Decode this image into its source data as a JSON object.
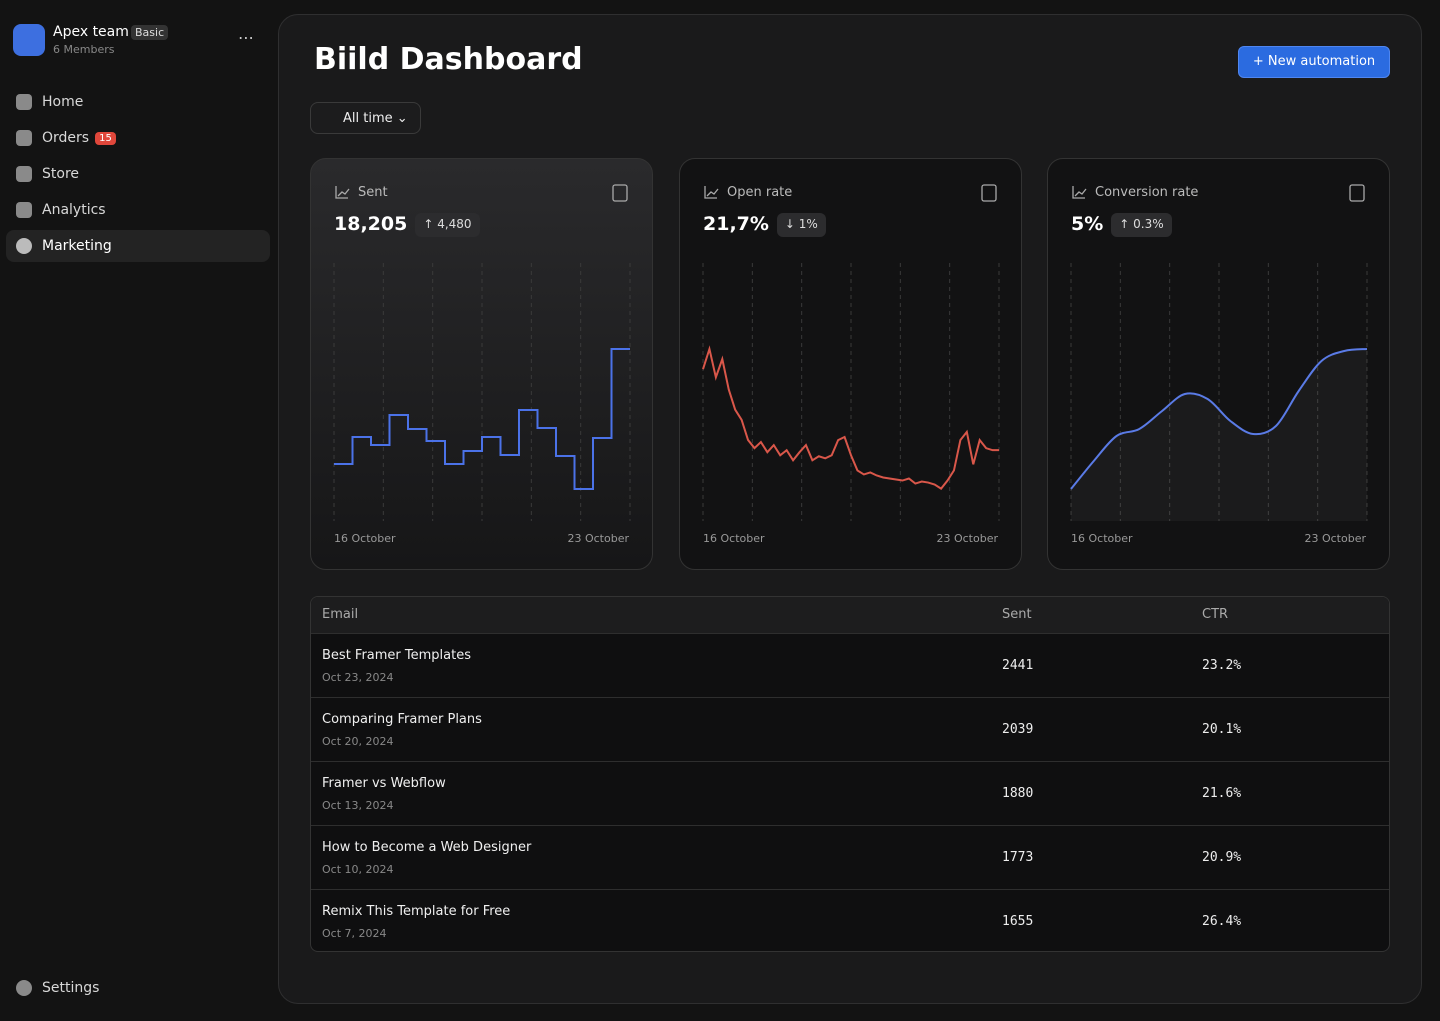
{
  "sidebar": {
    "team": "Apex team",
    "plan": "Basic",
    "members": "6 Members",
    "nav": [
      {
        "label": "Home"
      },
      {
        "label": "Orders",
        "badge": "15"
      },
      {
        "label": "Store"
      },
      {
        "label": "Analytics"
      },
      {
        "label": "Marketing"
      }
    ],
    "settings": "Settings"
  },
  "header": {
    "title": "Biild Dashboard",
    "button": "New automation",
    "filter": "All time"
  },
  "cards": [
    {
      "title": "Sent",
      "value": "18,205",
      "change": "4,480",
      "chart_data": {
        "type": "step",
        "color": "#4b72e8",
        "start_label": "16 October",
        "end_label": "23 October",
        "values": [
          57,
          84,
          76,
          106,
          92,
          80,
          57,
          70,
          84,
          66,
          111,
          93,
          65,
          32,
          83,
          172
        ]
      }
    },
    {
      "title": "Open rate",
      "value": "21,7%",
      "change": "1%",
      "chart_data": {
        "type": "line",
        "color": "#d9574a",
        "start_label": "16 October",
        "end_label": "23 October",
        "values": [
          150,
          170,
          142,
          160,
          130,
          110,
          100,
          80,
          72,
          78,
          68,
          75,
          65,
          70,
          60,
          68,
          75,
          60,
          64,
          62,
          65,
          80,
          83,
          65,
          50,
          46,
          48,
          45,
          43,
          42,
          41,
          40,
          42,
          37,
          39,
          38,
          36,
          32,
          40,
          50,
          80,
          88,
          56,
          80,
          72,
          70,
          70
        ]
      }
    },
    {
      "title": "Conversion rate",
      "value": "5%",
      "change": "0.3%",
      "chart_data": {
        "type": "smooth",
        "color": "#5a7be6",
        "start_label": "16 October",
        "end_label": "23 October",
        "values": [
          32,
          60,
          85,
          92,
          110,
          127,
          122,
          100,
          87,
          95,
          130,
          160,
          170,
          172
        ]
      }
    }
  ],
  "table": {
    "columns": [
      "Email",
      "Sent",
      "CTR"
    ],
    "rows": [
      {
        "title": "Best Framer Templates",
        "date": "Oct 23, 2024",
        "sent": "2441",
        "ctr": "23.2%"
      },
      {
        "title": "Comparing Framer Plans",
        "date": "Oct 20, 2024",
        "sent": "2039",
        "ctr": "20.1%"
      },
      {
        "title": "Framer vs Webflow",
        "date": "Oct 13, 2024",
        "sent": "1880",
        "ctr": "21.6%"
      },
      {
        "title": "How to Become a Web Designer",
        "date": "Oct 10, 2024",
        "sent": "1773",
        "ctr": "20.9%"
      },
      {
        "title": "Remix This Template for Free",
        "date": "Oct 7, 2024",
        "sent": "1655",
        "ctr": "26.4%"
      }
    ]
  }
}
